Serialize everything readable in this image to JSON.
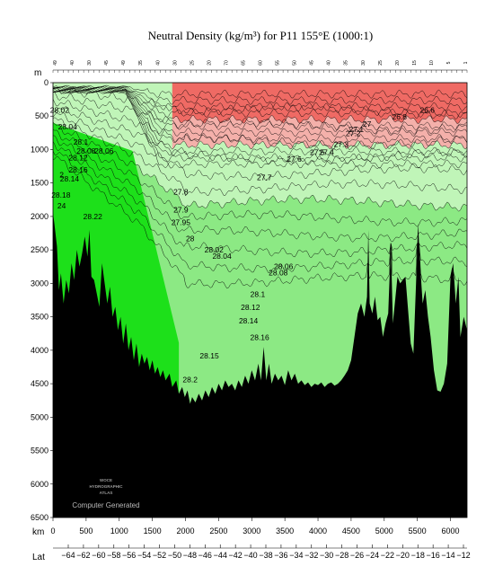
{
  "chart_data": {
    "type": "heatmap",
    "title": "Neutral Density (kg/m³) for P11 155°E (1000:1)",
    "ylabel": "m",
    "xlabel": "km",
    "x2label": "Lat",
    "ylim": [
      6500,
      0
    ],
    "xlim": [
      0,
      6250
    ],
    "y_ticks": [
      0,
      500,
      1000,
      1500,
      2000,
      2500,
      3000,
      3500,
      4000,
      4500,
      5000,
      5500,
      6000,
      6500
    ],
    "x_ticks": [
      0,
      500,
      1000,
      1500,
      2000,
      2500,
      3000,
      3500,
      4000,
      4500,
      5000,
      5500,
      6000
    ],
    "lat_ticks": [
      -64,
      -62,
      -60,
      -58,
      -56,
      -54,
      -52,
      -50,
      -48,
      -46,
      -44,
      -42,
      -40,
      -38,
      -36,
      -34,
      -32,
      -30,
      -28,
      -26,
      -24,
      -22,
      -20,
      -18,
      -16,
      -14,
      -12
    ],
    "station_numbers": [
      "49",
      "40",
      "30",
      "45",
      "49",
      "35",
      "40",
      "30",
      "25",
      "20",
      "70",
      "65",
      "60",
      "55",
      "50",
      "45",
      "40",
      "35",
      "30",
      "25",
      "20",
      "15",
      "10",
      "5",
      "1"
    ],
    "contour_labels": [
      {
        "text": "26.6",
        "x": 5650,
        "y": 450
      },
      {
        "text": "26.8",
        "x": 5230,
        "y": 550
      },
      {
        "text": "27",
        "x": 4740,
        "y": 660
      },
      {
        "text": "27.1",
        "x": 4580,
        "y": 740
      },
      {
        "text": "27.2",
        "x": 4530,
        "y": 800
      },
      {
        "text": "27.3",
        "x": 4350,
        "y": 960
      },
      {
        "text": "27.4",
        "x": 4130,
        "y": 1080
      },
      {
        "text": "27.5",
        "x": 3990,
        "y": 1080
      },
      {
        "text": "27.6",
        "x": 3640,
        "y": 1180
      },
      {
        "text": "27.7",
        "x": 3190,
        "y": 1460
      },
      {
        "text": "27.8",
        "x": 1930,
        "y": 1670
      },
      {
        "text": "27.9",
        "x": 1930,
        "y": 1940
      },
      {
        "text": "27.95",
        "x": 1930,
        "y": 2130
      },
      {
        "text": "28",
        "x": 2070,
        "y": 2370
      },
      {
        "text": "28.02",
        "x": 2430,
        "y": 2540
      },
      {
        "text": "28.04",
        "x": 2550,
        "y": 2630
      },
      {
        "text": "28.06",
        "x": 3480,
        "y": 2790
      },
      {
        "text": "28.08",
        "x": 3400,
        "y": 2880
      },
      {
        "text": "28.1",
        "x": 3090,
        "y": 3200
      },
      {
        "text": "28.12",
        "x": 2980,
        "y": 3400
      },
      {
        "text": "28.14",
        "x": 2950,
        "y": 3600
      },
      {
        "text": "28.16",
        "x": 3120,
        "y": 3850
      },
      {
        "text": "28.15",
        "x": 2360,
        "y": 4120
      },
      {
        "text": "28.2",
        "x": 2070,
        "y": 4480
      },
      {
        "text": "28.02",
        "x": 100,
        "y": 450
      },
      {
        "text": "28.04",
        "x": 220,
        "y": 700
      },
      {
        "text": "28.1",
        "x": 420,
        "y": 930
      },
      {
        "text": "28.08",
        "x": 500,
        "y": 1060
      },
      {
        "text": "28.06",
        "x": 770,
        "y": 1060
      },
      {
        "text": "28.12",
        "x": 380,
        "y": 1160
      },
      {
        "text": "28.16",
        "x": 380,
        "y": 1340
      },
      {
        "text": "28.14",
        "x": 250,
        "y": 1480
      },
      {
        "text": "2",
        "x": 130,
        "y": 1420
      },
      {
        "text": "28.18",
        "x": 120,
        "y": 1720
      },
      {
        "text": "24",
        "x": 130,
        "y": 1880
      },
      {
        "text": "28.22",
        "x": 600,
        "y": 2040
      }
    ],
    "bands": [
      {
        "name": "light-red",
        "color": "#f4b0aa",
        "depth_range": [
          0,
          1100
        ]
      },
      {
        "name": "red",
        "color": "#ef6a64",
        "depth_range": [
          0,
          600
        ]
      },
      {
        "name": "pale-green",
        "color": "#c0f5b8",
        "depth_range": [
          1100,
          2700
        ]
      },
      {
        "name": "mid-green",
        "color": "#8ce984",
        "depth_range": [
          2700,
          4200
        ]
      },
      {
        "name": "bright-green",
        "color": "#1de01a",
        "depth_range": [
          1000,
          4800
        ]
      }
    ]
  },
  "watermark": {
    "lines": [
      "WOCE",
      "HYDROGRAPHIC",
      "ATLAS"
    ],
    "caption": "Computer Generated"
  }
}
